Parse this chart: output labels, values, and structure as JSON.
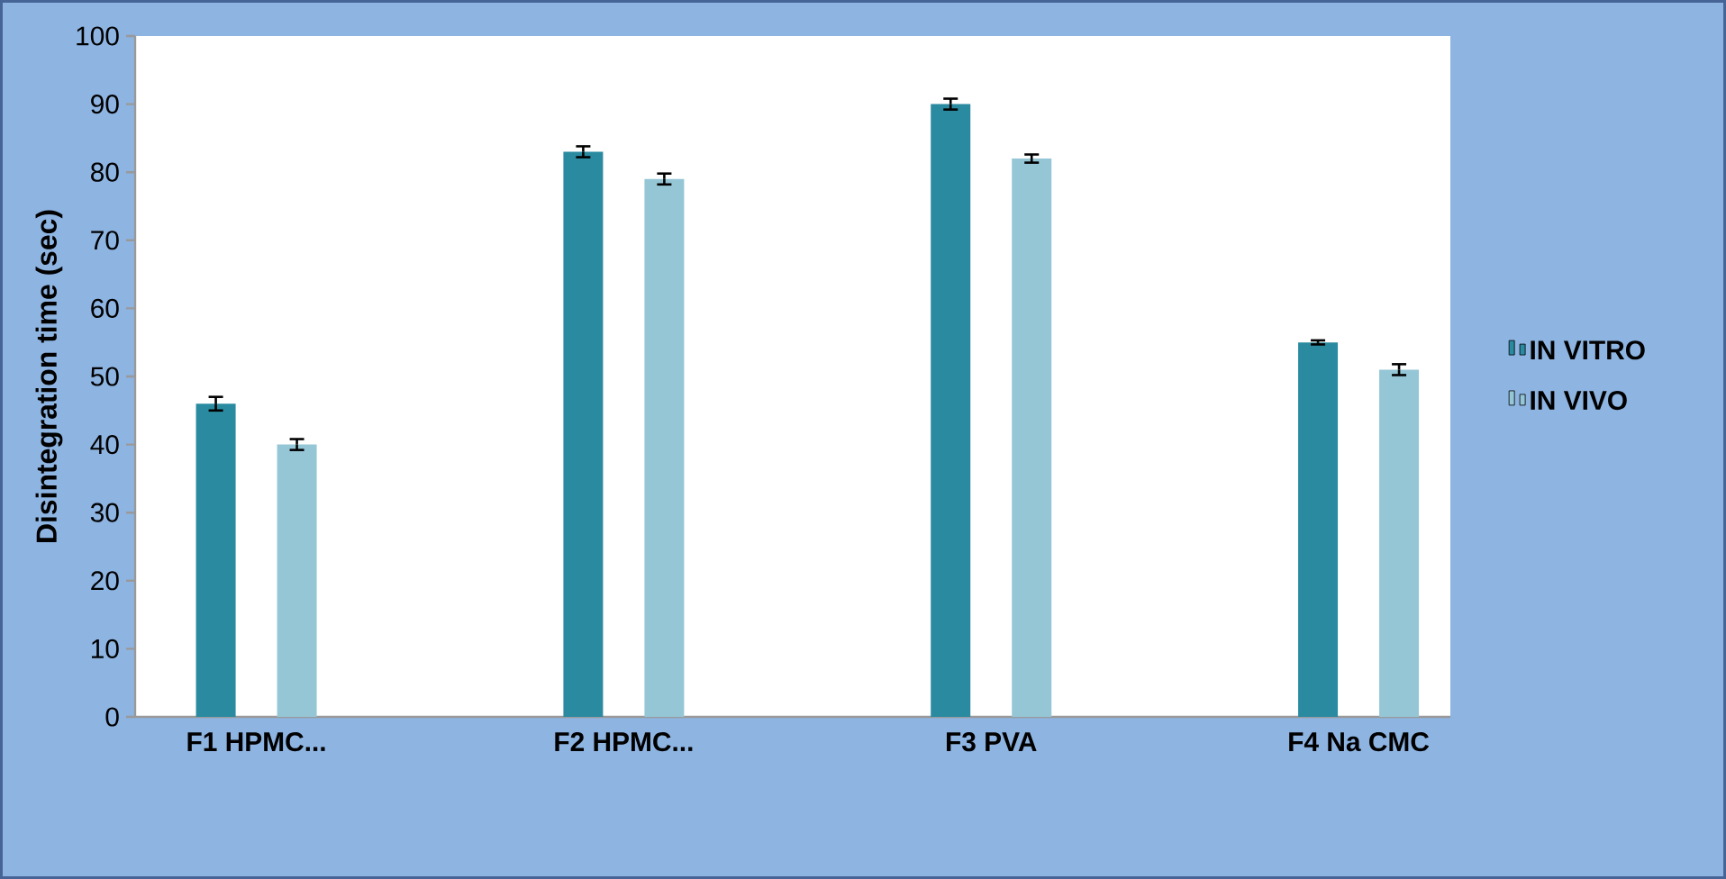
{
  "chart_data": {
    "type": "bar",
    "ylabel": "Disintegration time (sec)",
    "categories": [
      "F1 HPMC...",
      "F2 HPMC...",
      "F3 PVA",
      "F4 Na CMC"
    ],
    "series": [
      {
        "name": "IN VITRO",
        "color": "#2a8aa0",
        "values": [
          46,
          83,
          90,
          55
        ],
        "errors": [
          1,
          0.8,
          0.8,
          0.3
        ]
      },
      {
        "name": "IN VIVO",
        "color": "#95c6d6",
        "values": [
          40,
          79,
          82,
          51
        ],
        "errors": [
          0.8,
          0.8,
          0.6,
          0.8
        ]
      }
    ],
    "ylim": [
      0,
      100
    ],
    "yticks": [
      0,
      10,
      20,
      30,
      40,
      50,
      60,
      70,
      80,
      90,
      100
    ],
    "grid": false,
    "legend": "right"
  }
}
